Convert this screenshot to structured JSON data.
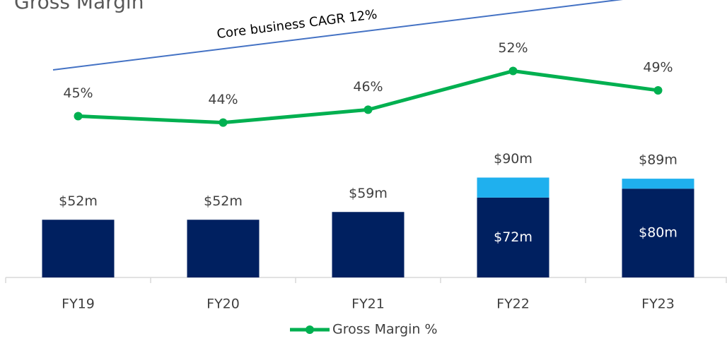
{
  "chart_data": {
    "type": "bar",
    "title": "Gross Margin",
    "annotation": "Core business CAGR 12%",
    "categories": [
      "FY19",
      "FY20",
      "FY21",
      "FY22",
      "FY23"
    ],
    "ylim": [
      0,
      250
    ],
    "y2lim": [
      20,
      63
    ],
    "series": [
      {
        "color": "#002060",
        "values": [
          52,
          52,
          59,
          72,
          80
        ],
        "value_labels": [
          "$52m",
          "$52m",
          "$59m",
          "$72m",
          "$80m"
        ]
      },
      {
        "color": "#1fb0ee",
        "values": [
          null,
          null,
          null,
          18,
          9
        ]
      },
      {
        "name": "Gross Margin %",
        "type": "line",
        "axis": "y2",
        "color": "#00b050",
        "values": [
          45,
          44,
          46,
          52,
          49
        ],
        "value_labels": [
          "45%",
          "44%",
          "46%",
          "52%",
          "49%"
        ]
      }
    ],
    "totals": [
      null,
      null,
      null,
      90,
      89
    ],
    "total_labels": [
      null,
      null,
      null,
      "$90m",
      "$89m"
    ],
    "legend": "bottom"
  }
}
